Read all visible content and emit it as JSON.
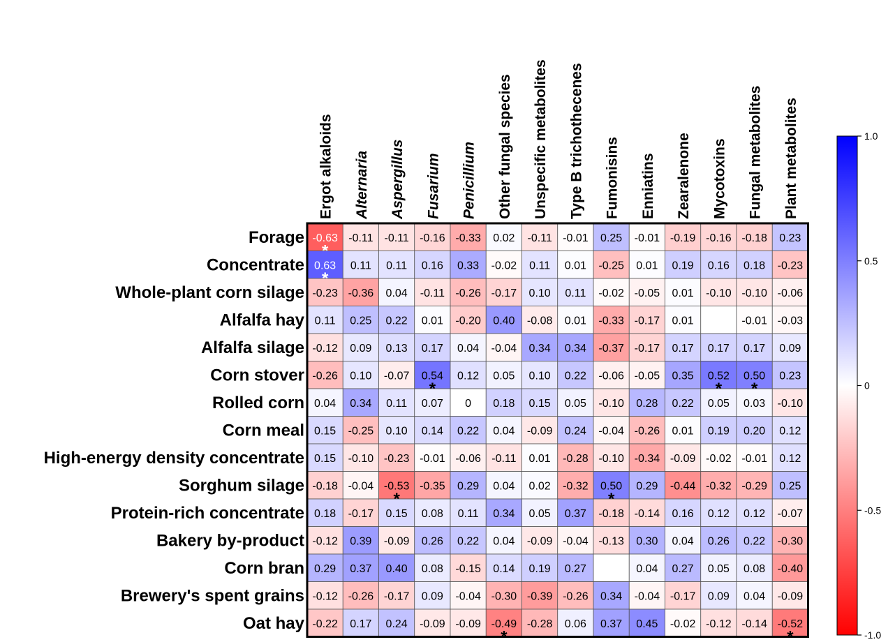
{
  "chart_data": {
    "type": "heatmap",
    "columns": [
      "Ergot alkaloids",
      "Alternaria",
      "Aspergillus",
      "Fusarium",
      "Penicillium",
      "Other fungal species",
      "Unspecific metabolites",
      "Type B trichothecenes",
      "Fumonisins",
      "Enniatins",
      "Zearalenone",
      "Mycotoxins",
      "Fungal metabolites",
      "Plant metabolites"
    ],
    "italic_columns": [
      "Alternaria",
      "Aspergillus",
      "Fusarium",
      "Penicillium"
    ],
    "rows": [
      "Forage",
      "Concentrate",
      "Whole-plant corn silage",
      "Alfalfa hay",
      "Alfalfa silage",
      "Corn stover",
      "Rolled corn",
      "Corn meal",
      "High-energy density concentrate",
      "Sorghum silage",
      "Protein-rich concentrate",
      "Bakery by-product",
      "Corn bran",
      "Brewery's spent grains",
      "Oat hay"
    ],
    "values": [
      [
        -0.63,
        -0.11,
        -0.11,
        -0.16,
        -0.33,
        0.02,
        -0.11,
        -0.01,
        0.25,
        -0.01,
        -0.19,
        -0.16,
        -0.18,
        0.23
      ],
      [
        0.63,
        0.11,
        0.11,
        0.16,
        0.33,
        -0.02,
        0.11,
        0.01,
        -0.25,
        0.01,
        0.19,
        0.16,
        0.18,
        -0.23
      ],
      [
        -0.23,
        -0.36,
        0.04,
        -0.11,
        -0.26,
        -0.17,
        0.1,
        0.11,
        -0.02,
        -0.05,
        0.01,
        -0.1,
        -0.1,
        -0.06
      ],
      [
        0.11,
        0.25,
        0.22,
        0.01,
        -0.2,
        0.4,
        -0.08,
        0.01,
        -0.33,
        -0.17,
        0.01,
        null,
        -0.01,
        -0.03
      ],
      [
        -0.12,
        0.09,
        0.13,
        0.17,
        0.04,
        -0.04,
        0.34,
        0.34,
        -0.37,
        -0.17,
        0.17,
        0.17,
        0.17,
        0.09
      ],
      [
        -0.26,
        0.1,
        -0.07,
        0.54,
        0.12,
        0.05,
        0.1,
        0.22,
        -0.06,
        -0.05,
        0.35,
        0.52,
        0.5,
        0.23
      ],
      [
        0.04,
        0.34,
        0.11,
        0.07,
        0,
        0.18,
        0.15,
        0.05,
        -0.1,
        0.28,
        0.22,
        0.05,
        0.03,
        -0.1
      ],
      [
        0.15,
        -0.25,
        0.1,
        0.14,
        0.22,
        0.04,
        -0.09,
        0.24,
        -0.04,
        -0.26,
        0.01,
        0.19,
        0.2,
        0.12
      ],
      [
        0.15,
        -0.1,
        -0.23,
        -0.01,
        -0.06,
        -0.11,
        0.01,
        -0.28,
        -0.1,
        -0.34,
        -0.09,
        -0.02,
        -0.01,
        0.12
      ],
      [
        -0.18,
        -0.04,
        -0.53,
        -0.35,
        0.29,
        0.04,
        0.02,
        -0.32,
        0.5,
        0.29,
        -0.44,
        -0.32,
        -0.29,
        0.25
      ],
      [
        0.18,
        -0.17,
        0.15,
        0.08,
        0.11,
        0.34,
        0.05,
        0.37,
        -0.18,
        -0.14,
        0.16,
        0.12,
        0.12,
        -0.07
      ],
      [
        -0.12,
        0.39,
        -0.09,
        0.26,
        0.22,
        0.04,
        -0.09,
        -0.04,
        -0.13,
        0.3,
        0.04,
        0.26,
        0.22,
        -0.3
      ],
      [
        0.29,
        0.37,
        0.4,
        0.08,
        -0.15,
        0.14,
        0.19,
        0.27,
        null,
        0.04,
        0.27,
        0.05,
        0.08,
        -0.4
      ],
      [
        -0.12,
        -0.26,
        -0.17,
        0.09,
        -0.04,
        -0.3,
        -0.39,
        -0.26,
        0.34,
        -0.04,
        -0.17,
        0.09,
        0.04,
        -0.09
      ],
      [
        -0.22,
        0.17,
        0.24,
        -0.09,
        -0.09,
        -0.49,
        -0.28,
        0.06,
        0.37,
        0.45,
        -0.02,
        -0.12,
        -0.14,
        -0.52
      ]
    ],
    "labels": [
      [
        "-0.63",
        "-0.11",
        "-0.11",
        "-0.16",
        "-0.33",
        "0.02",
        "-0.11",
        "-0.01",
        "0.25",
        "-0.01",
        "-0.19",
        "-0.16",
        "-0.18",
        "0.23"
      ],
      [
        "0.63",
        "0.11",
        "0.11",
        "0.16",
        "0.33",
        "-0.02",
        "0.11",
        "0.01",
        "-0.25",
        "0.01",
        "0.19",
        "0.16",
        "0.18",
        "-0.23"
      ],
      [
        "-0.23",
        "-0.36",
        "0.04",
        "-0.11",
        "-0.26",
        "-0.17",
        "0.10",
        "0.11",
        "-0.02",
        "-0.05",
        "0.01",
        "-0.10",
        "-0.10",
        "-0.06"
      ],
      [
        "0.11",
        "0.25",
        "0.22",
        "0.01",
        "-0.20",
        "0.40",
        "-0.08",
        "0.01",
        "-0.33",
        "-0.17",
        "0.01",
        "",
        "-0.01",
        "-0.03"
      ],
      [
        "-0.12",
        "0.09",
        "0.13",
        "0.17",
        "0.04",
        "-0.04",
        "0.34",
        "0.34",
        "-0.37",
        "-0.17",
        "0.17",
        "0.17",
        "0.17",
        "0.09"
      ],
      [
        "-0.26",
        "0.10",
        "-0.07",
        "0.54",
        "0.12",
        "0.05",
        "0.10",
        "0.22",
        "-0.06",
        "-0.05",
        "0.35",
        "0.52",
        "0.50",
        "0.23"
      ],
      [
        "0.04",
        "0.34",
        "0.11",
        "0.07",
        "0",
        "0.18",
        "0.15",
        "0.05",
        "-0.10",
        "0.28",
        "0.22",
        "0.05",
        "0.03",
        "-0.10"
      ],
      [
        "0.15",
        "-0.25",
        "0.10",
        "0.14",
        "0.22",
        "0.04",
        "-0.09",
        "0.24",
        "-0.04",
        "-0.26",
        "0.01",
        "0.19",
        "0.20",
        "0.12"
      ],
      [
        "0.15",
        "-0.10",
        "-0.23",
        "-0.01",
        "-0.06",
        "-0.11",
        "0.01",
        "-0.28",
        "-0.10",
        "-0.34",
        "-0.09",
        "-0.02",
        "-0.01",
        "0.12"
      ],
      [
        "-0.18",
        "-0.04",
        "-0.53",
        "-0.35",
        "0.29",
        "0.04",
        "0.02",
        "-0.32",
        "0.50",
        "0.29",
        "-0.44",
        "-0.32",
        "-0.29",
        "0.25"
      ],
      [
        "0.18",
        "-0.17",
        "0.15",
        "0.08",
        "0.11",
        "0.34",
        "0.05",
        "0.37",
        "-0.18",
        "-0.14",
        "0.16",
        "0.12",
        "0.12",
        "-0.07"
      ],
      [
        "-0.12",
        "0.39",
        "-0.09",
        "0.26",
        "0.22",
        "0.04",
        "-0.09",
        "-0.04",
        "-0.13",
        "0.30",
        "0.04",
        "0.26",
        "0.22",
        "-0.30"
      ],
      [
        "0.29",
        "0.37",
        "0.40",
        "0.08",
        "-0.15",
        "0.14",
        "0.19",
        "0.27",
        "",
        "0.04",
        "0.27",
        "0.05",
        "0.08",
        "-0.40"
      ],
      [
        "-0.12",
        "-0.26",
        "-0.17",
        "0.09",
        "-0.04",
        "-0.30",
        "-0.39",
        "-0.26",
        "0.34",
        "-0.04",
        "-0.17",
        "0.09",
        "0.04",
        "-0.09"
      ],
      [
        "-0.22",
        "0.17",
        "0.24",
        "-0.09",
        "-0.09",
        "-0.49",
        "-0.28",
        "0.06",
        "0.37",
        "0.45",
        "-0.02",
        "-0.12",
        "-0.14",
        "-0.52"
      ]
    ],
    "significance_marker": "*",
    "significant_cells": [
      [
        0,
        0
      ],
      [
        1,
        0
      ],
      [
        5,
        3
      ],
      [
        5,
        11
      ],
      [
        5,
        12
      ],
      [
        9,
        2
      ],
      [
        9,
        8
      ],
      [
        14,
        5
      ],
      [
        14,
        13
      ]
    ],
    "colorbar": {
      "range": [
        -1.0,
        1.0
      ],
      "ticks": [
        {
          "value": 1.0,
          "label": "1.0"
        },
        {
          "value": 0.5,
          "label": "0.5"
        },
        {
          "value": 0,
          "label": "0"
        },
        {
          "value": -0.5,
          "label": "-0.5"
        },
        {
          "value": -1.0,
          "label": "-1.0"
        }
      ],
      "colors": {
        "max": "#0000ff",
        "mid": "#ffffff",
        "min": "#ff0000"
      }
    }
  }
}
